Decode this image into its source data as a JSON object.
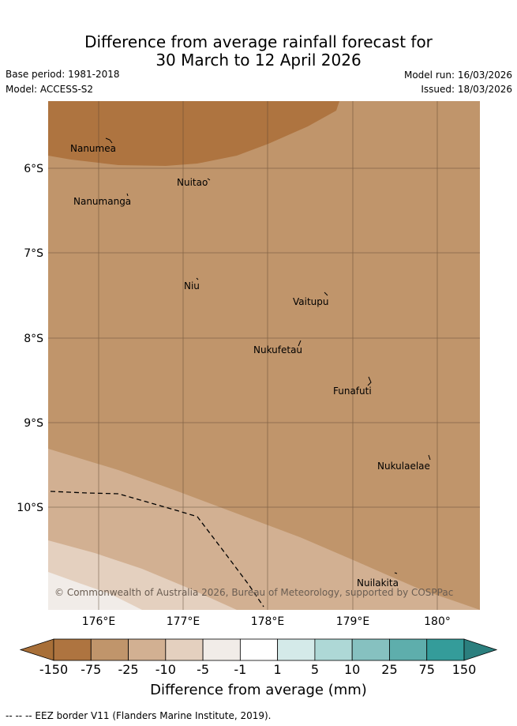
{
  "header": {
    "title_line1": "Difference from average rainfall forecast for",
    "title_line2": "30 March to 12 April 2026",
    "base_period": "Base period: 1981-2018",
    "model": "Model: ACCESS-S2",
    "model_run": "Model run: 16/03/2026",
    "issued": "Issued: 18/03/2026"
  },
  "map": {
    "places": [
      "Nanumea",
      "Nuitao",
      "Nanumanga",
      "Niu",
      "Vaitupu",
      "Nukufetau",
      "Funafuti",
      "Nukulaelae",
      "Nuilakita"
    ],
    "lat_labels": [
      "6°S",
      "7°S",
      "8°S",
      "9°S",
      "10°S"
    ],
    "lon_labels": [
      "176°E",
      "177°E",
      "178°E",
      "179°E",
      "180°"
    ],
    "copyright": "© Commonwealth of Australia 2026, Bureau of Meteorology, supported by COSPPac"
  },
  "colorbar": {
    "colors": [
      "#a86f38",
      "#ae7440",
      "#c0956b",
      "#d2b092",
      "#e4d0bf",
      "#f1ece8",
      "#ffffff",
      "#d4eae9",
      "#aed8d6",
      "#86c1c0",
      "#5eaeac",
      "#349c9a",
      "#2b7f7e"
    ],
    "labels": [
      "-150",
      "-75",
      "-25",
      "-10",
      "-5",
      "-1",
      "1",
      "5",
      "10",
      "25",
      "75",
      "150"
    ],
    "title": "Difference from average (mm)"
  },
  "footnote": "--  --  -- EEZ border V11 (Flanders Marine Institute, 2019)."
}
